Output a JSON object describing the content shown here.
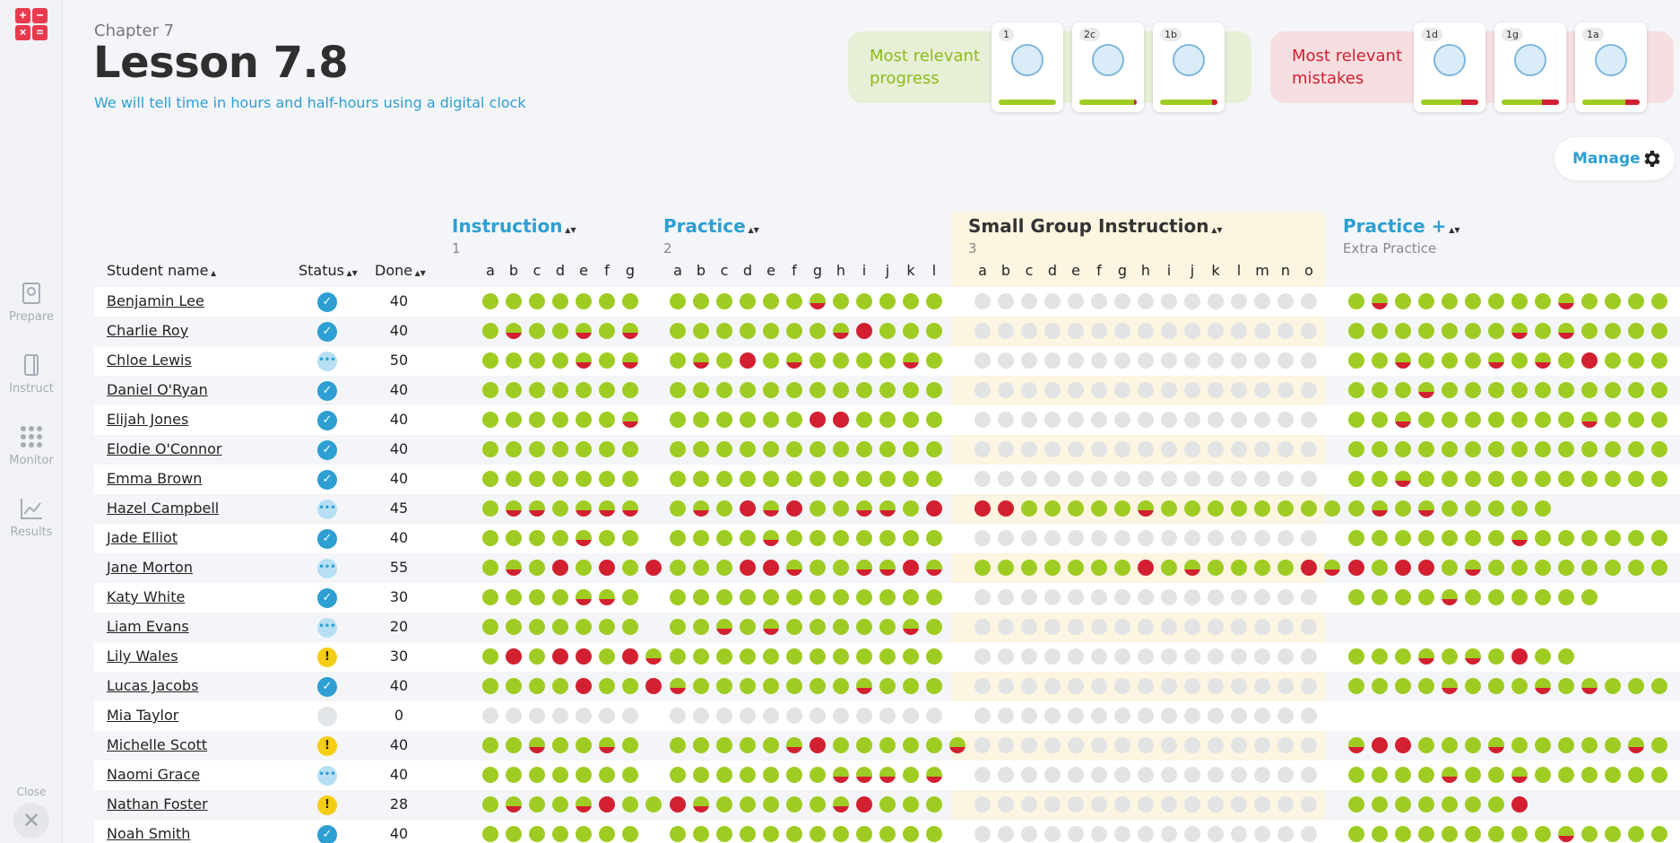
{
  "nav": {
    "items": [
      {
        "label": "Prepare",
        "icon": "prepare-icon"
      },
      {
        "label": "Instruct",
        "icon": "instruct-icon"
      },
      {
        "label": "Monitor",
        "icon": "monitor-icon"
      },
      {
        "label": "Results",
        "icon": "results-icon"
      }
    ],
    "close_label": "Close"
  },
  "header": {
    "chapter": "Chapter 7",
    "title": "Lesson 7.8",
    "subtitle": "We will tell time in hours and half-hours using a digital clock"
  },
  "progress_panel": {
    "label_line1": "Most relevant",
    "label_line2": "progress",
    "cards": [
      {
        "id": "1",
        "red_fraction": 0
      },
      {
        "id": "2c",
        "red_fraction": 0.05
      },
      {
        "id": "1b",
        "red_fraction": 0.1
      }
    ]
  },
  "mistakes_panel": {
    "label_line1": "Most relevant",
    "label_line2": "mistakes",
    "cards": [
      {
        "id": "1d",
        "red_fraction": 0.3
      },
      {
        "id": "1g",
        "red_fraction": 0.3
      },
      {
        "id": "1a",
        "red_fraction": 0.25
      }
    ]
  },
  "manage_label": "Manage",
  "columns": {
    "student_name": "Student name",
    "status": "Status",
    "done": "Done"
  },
  "sections": [
    {
      "title": "Instruction",
      "number": "1",
      "subs": [
        "a",
        "b",
        "c",
        "d",
        "e",
        "f",
        "g"
      ]
    },
    {
      "title": "Practice",
      "number": "2",
      "subs": [
        "a",
        "b",
        "c",
        "d",
        "e",
        "f",
        "g",
        "h",
        "i",
        "j",
        "k",
        "l"
      ]
    },
    {
      "title": "Small Group Instruction",
      "number": "3",
      "subs": [
        "a",
        "b",
        "c",
        "d",
        "e",
        "f",
        "g",
        "h",
        "i",
        "j",
        "k",
        "l",
        "m",
        "n",
        "o"
      ]
    },
    {
      "title": "Practice +",
      "number": "Extra Practice",
      "subs": []
    }
  ],
  "students": [
    {
      "name": "Benjamin Lee",
      "status": "complete",
      "done": "40",
      "s1": "ggggggg",
      "s2": "ggggggMggggg",
      "s3": "eeeeeeeeeeeeeee",
      "s4": "gMgggggggMggggg"
    },
    {
      "name": "Charlie Roy",
      "status": "complete",
      "done": "40",
      "s1": "gMggMgM",
      "s2": "gggggggMRggg",
      "s3": "eeeeeeeeeeeeeee",
      "s4": "gggggggMgMgggggR"
    },
    {
      "name": "Chloe Lewis",
      "status": "progress",
      "done": "50",
      "s1": "ggggMgM",
      "s2": "gMgRgMggggMg",
      "s3": "eeeeeeeeeeeeeee",
      "s4": "ggMgggMgMgRgggg"
    },
    {
      "name": "Daniel O'Ryan",
      "status": "complete",
      "done": "40",
      "s1": "ggggggg",
      "s2": "gggggggggggg",
      "s3": "eeeeeeeeeeeeeee",
      "s4": "gggMgggggggggggg"
    },
    {
      "name": "Elijah Jones",
      "status": "complete",
      "done": "40",
      "s1": "ggggggM",
      "s2": "ggggggRRgggg",
      "s3": "eeeeeeeeeeeeeee",
      "s4": "ggMgggggggMggggg"
    },
    {
      "name": "Elodie O'Connor",
      "status": "complete",
      "done": "40",
      "s1": "ggggggg",
      "s2": "gggggggggggg",
      "s3": "eeeeeeeeeeeeeee",
      "s4": "gggggggggggggggg"
    },
    {
      "name": "Emma Brown",
      "status": "complete",
      "done": "40",
      "s1": "ggggggg",
      "s2": "gggggggggggg",
      "s3": "eeeeeeeeeeeeeee",
      "s4": "ggMggggggggggggg"
    },
    {
      "name": "Hazel Campbell",
      "status": "progress",
      "done": "45",
      "s1": "gMMgMMM",
      "s2": "gMgRMRggMMgR",
      "s3": "RRgggggMgggggggg",
      "s4": "gMgMggggg"
    },
    {
      "name": "Jade Elliot",
      "status": "complete",
      "done": "40",
      "s1": "ggggMgg",
      "s2": "ggggMggggggg",
      "s3": "eeeeeeeeeeeeeee",
      "s4": "gggggggMgggggggg"
    },
    {
      "name": "Jane Morton",
      "status": "progress",
      "done": "55",
      "s1": "gMgRgRgR",
      "s2": "gggRRMggMMRM",
      "s3": "gggggggRgMggggRM",
      "s4": "RgRRgMgggggggggg"
    },
    {
      "name": "Katy White",
      "status": "complete",
      "done": "30",
      "s1": "ggggMMg",
      "s2": "gggggggggggg",
      "s3": "eeeeeeeeeeeeeee",
      "s4": "ggggMgggggg"
    },
    {
      "name": "Liam Evans",
      "status": "progress",
      "done": "20",
      "s1": "ggggggg",
      "s2": "ggMgMgggggMg",
      "s3": "eeeeeeeeeeeeeee",
      "s4": ""
    },
    {
      "name": "Lily Wales",
      "status": "warn",
      "done": "30",
      "s1": "gRgRRgRM",
      "s2": "gggggggggggg",
      "s3": "eeeeeeeeeeeeeee",
      "s4": "gggMgMgRgg"
    },
    {
      "name": "Lucas Jacobs",
      "status": "complete",
      "done": "40",
      "s1": "ggggRggR",
      "s2": "MgggggggMggg",
      "s3": "eeeeeeeeeeeeeee",
      "s4": "ggggMgggMgMggggg"
    },
    {
      "name": "Mia Taylor",
      "status": "none",
      "done": "0",
      "s1": "eeeeeee",
      "s2": "eeeeeeeeeeee",
      "s3": "eeeeeeeeeeeeeee",
      "s4": ""
    },
    {
      "name": "Michelle Scott",
      "status": "warn",
      "done": "40",
      "s1": "ggMggMg",
      "s2": "gggggMRgggggM",
      "s3": "eeeeeeeeeeeeeee",
      "s4": "MRRgggMgggggMggMR"
    },
    {
      "name": "Naomi Grace",
      "status": "progress",
      "done": "40",
      "s1": "ggggggg",
      "s2": "gggggggMMMgM",
      "s3": "eeeeeeeeeeeeeee",
      "s4": "ggggMggMggggggg"
    },
    {
      "name": "Nathan Foster",
      "status": "warn",
      "done": "28",
      "s1": "gMggMRgg",
      "s2": "RMgggggMRggg",
      "s3": "eeeeeeeeeeeeeee",
      "s4": "gggggggR"
    },
    {
      "name": "Noah Smith",
      "status": "complete",
      "done": "40",
      "s1": "ggggggg",
      "s2": "gggggggggggg",
      "s3": "eeeeeeeeeeeeeee",
      "s4": "gggggggggMggggg"
    }
  ]
}
